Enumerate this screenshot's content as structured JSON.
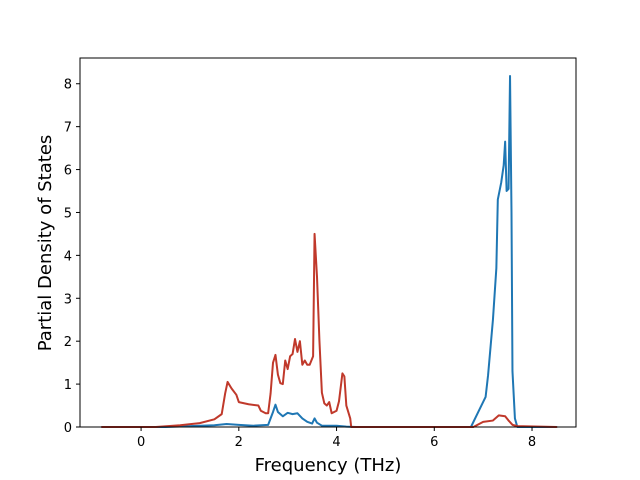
{
  "chart_data": {
    "type": "line",
    "title": "",
    "xlabel": "Frequency (THz)",
    "ylabel": "Partial Density of States",
    "xlim": [
      -1.25,
      8.9
    ],
    "ylim": [
      0,
      8.6
    ],
    "x_ticks": [
      0,
      2,
      4,
      6,
      8
    ],
    "y_ticks": [
      0,
      1,
      2,
      3,
      4,
      5,
      6,
      7,
      8
    ],
    "x_tick_labels": [
      "0",
      "2",
      "4",
      "6",
      "8"
    ],
    "y_tick_labels": [
      "0",
      "1",
      "2",
      "3",
      "4",
      "5",
      "6",
      "7",
      "8"
    ],
    "grid": false,
    "legend": false,
    "series": [
      {
        "color": "#1f77b4",
        "points": [
          [
            -0.8,
            0
          ],
          [
            0.5,
            0
          ],
          [
            1.0,
            0.02
          ],
          [
            1.5,
            0.04
          ],
          [
            1.75,
            0.07
          ],
          [
            2.0,
            0.05
          ],
          [
            2.3,
            0.03
          ],
          [
            2.6,
            0.05
          ],
          [
            2.7,
            0.35
          ],
          [
            2.75,
            0.52
          ],
          [
            2.8,
            0.35
          ],
          [
            2.9,
            0.25
          ],
          [
            3.0,
            0.33
          ],
          [
            3.1,
            0.3
          ],
          [
            3.2,
            0.32
          ],
          [
            3.3,
            0.2
          ],
          [
            3.4,
            0.12
          ],
          [
            3.5,
            0.08
          ],
          [
            3.55,
            0.2
          ],
          [
            3.6,
            0.1
          ],
          [
            3.7,
            0.03
          ],
          [
            4.0,
            0.03
          ],
          [
            4.2,
            0.01
          ],
          [
            4.4,
            0
          ],
          [
            6.75,
            0
          ],
          [
            6.9,
            0.35
          ],
          [
            7.05,
            0.7
          ],
          [
            7.1,
            1.2
          ],
          [
            7.2,
            2.5
          ],
          [
            7.27,
            3.7
          ],
          [
            7.3,
            5.3
          ],
          [
            7.37,
            5.7
          ],
          [
            7.42,
            6.1
          ],
          [
            7.45,
            6.65
          ],
          [
            7.48,
            5.5
          ],
          [
            7.52,
            5.55
          ],
          [
            7.55,
            8.18
          ],
          [
            7.58,
            5.0
          ],
          [
            7.6,
            1.3
          ],
          [
            7.65,
            0.2
          ],
          [
            7.7,
            0
          ],
          [
            8.5,
            0
          ]
        ]
      },
      {
        "color": "#c0392b",
        "points": [
          [
            -0.8,
            0
          ],
          [
            0.3,
            0
          ],
          [
            0.8,
            0.04
          ],
          [
            1.2,
            0.09
          ],
          [
            1.5,
            0.18
          ],
          [
            1.65,
            0.3
          ],
          [
            1.72,
            0.78
          ],
          [
            1.77,
            1.05
          ],
          [
            1.85,
            0.9
          ],
          [
            1.95,
            0.75
          ],
          [
            2.0,
            0.58
          ],
          [
            2.2,
            0.53
          ],
          [
            2.4,
            0.5
          ],
          [
            2.45,
            0.38
          ],
          [
            2.55,
            0.32
          ],
          [
            2.6,
            0.32
          ],
          [
            2.65,
            0.78
          ],
          [
            2.7,
            1.5
          ],
          [
            2.75,
            1.68
          ],
          [
            2.8,
            1.22
          ],
          [
            2.85,
            1.02
          ],
          [
            2.9,
            1.0
          ],
          [
            2.95,
            1.55
          ],
          [
            3.0,
            1.35
          ],
          [
            3.05,
            1.65
          ],
          [
            3.1,
            1.7
          ],
          [
            3.15,
            2.05
          ],
          [
            3.2,
            1.75
          ],
          [
            3.25,
            2.0
          ],
          [
            3.3,
            1.45
          ],
          [
            3.35,
            1.55
          ],
          [
            3.4,
            1.45
          ],
          [
            3.45,
            1.45
          ],
          [
            3.52,
            1.65
          ],
          [
            3.55,
            4.5
          ],
          [
            3.6,
            3.5
          ],
          [
            3.65,
            2.0
          ],
          [
            3.7,
            0.8
          ],
          [
            3.75,
            0.55
          ],
          [
            3.8,
            0.5
          ],
          [
            3.85,
            0.58
          ],
          [
            3.9,
            0.32
          ],
          [
            4.0,
            0.38
          ],
          [
            4.05,
            0.6
          ],
          [
            4.12,
            1.25
          ],
          [
            4.16,
            1.18
          ],
          [
            4.2,
            0.5
          ],
          [
            4.28,
            0.2
          ],
          [
            4.3,
            0
          ],
          [
            6.8,
            0
          ],
          [
            7.0,
            0.12
          ],
          [
            7.2,
            0.15
          ],
          [
            7.32,
            0.27
          ],
          [
            7.45,
            0.25
          ],
          [
            7.52,
            0.15
          ],
          [
            7.6,
            0.05
          ],
          [
            7.7,
            0.02
          ],
          [
            8.5,
            0
          ]
        ]
      }
    ]
  }
}
